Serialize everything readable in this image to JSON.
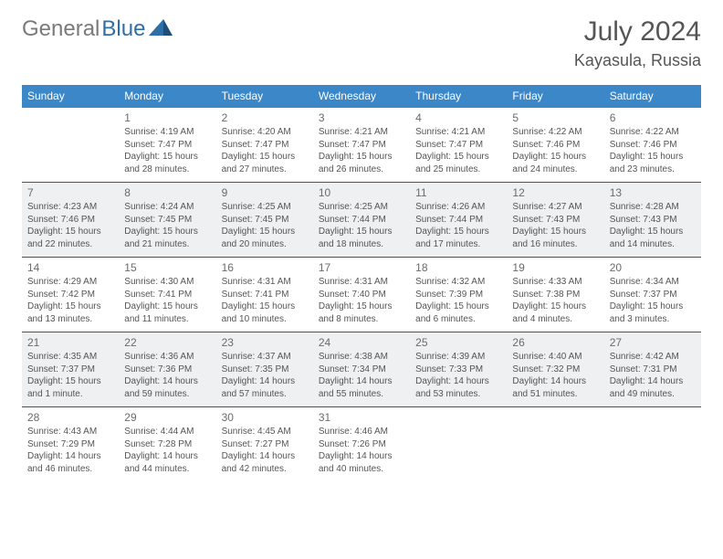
{
  "brand": {
    "part1": "General",
    "part2": "Blue"
  },
  "header": {
    "month_title": "July 2024",
    "location": "Kayasula, Russia"
  },
  "colors": {
    "header_bg": "#3b87c8",
    "header_text": "#ffffff",
    "row_border": "#2a5a86",
    "shaded_bg": "#eef0f1",
    "text": "#555555"
  },
  "day_names": [
    "Sunday",
    "Monday",
    "Tuesday",
    "Wednesday",
    "Thursday",
    "Friday",
    "Saturday"
  ],
  "weeks": [
    {
      "shaded": false,
      "days": [
        {
          "n": "",
          "sr": "",
          "ss": "",
          "dl": ""
        },
        {
          "n": "1",
          "sr": "Sunrise: 4:19 AM",
          "ss": "Sunset: 7:47 PM",
          "dl": "Daylight: 15 hours and 28 minutes."
        },
        {
          "n": "2",
          "sr": "Sunrise: 4:20 AM",
          "ss": "Sunset: 7:47 PM",
          "dl": "Daylight: 15 hours and 27 minutes."
        },
        {
          "n": "3",
          "sr": "Sunrise: 4:21 AM",
          "ss": "Sunset: 7:47 PM",
          "dl": "Daylight: 15 hours and 26 minutes."
        },
        {
          "n": "4",
          "sr": "Sunrise: 4:21 AM",
          "ss": "Sunset: 7:47 PM",
          "dl": "Daylight: 15 hours and 25 minutes."
        },
        {
          "n": "5",
          "sr": "Sunrise: 4:22 AM",
          "ss": "Sunset: 7:46 PM",
          "dl": "Daylight: 15 hours and 24 minutes."
        },
        {
          "n": "6",
          "sr": "Sunrise: 4:22 AM",
          "ss": "Sunset: 7:46 PM",
          "dl": "Daylight: 15 hours and 23 minutes."
        }
      ]
    },
    {
      "shaded": true,
      "days": [
        {
          "n": "7",
          "sr": "Sunrise: 4:23 AM",
          "ss": "Sunset: 7:46 PM",
          "dl": "Daylight: 15 hours and 22 minutes."
        },
        {
          "n": "8",
          "sr": "Sunrise: 4:24 AM",
          "ss": "Sunset: 7:45 PM",
          "dl": "Daylight: 15 hours and 21 minutes."
        },
        {
          "n": "9",
          "sr": "Sunrise: 4:25 AM",
          "ss": "Sunset: 7:45 PM",
          "dl": "Daylight: 15 hours and 20 minutes."
        },
        {
          "n": "10",
          "sr": "Sunrise: 4:25 AM",
          "ss": "Sunset: 7:44 PM",
          "dl": "Daylight: 15 hours and 18 minutes."
        },
        {
          "n": "11",
          "sr": "Sunrise: 4:26 AM",
          "ss": "Sunset: 7:44 PM",
          "dl": "Daylight: 15 hours and 17 minutes."
        },
        {
          "n": "12",
          "sr": "Sunrise: 4:27 AM",
          "ss": "Sunset: 7:43 PM",
          "dl": "Daylight: 15 hours and 16 minutes."
        },
        {
          "n": "13",
          "sr": "Sunrise: 4:28 AM",
          "ss": "Sunset: 7:43 PM",
          "dl": "Daylight: 15 hours and 14 minutes."
        }
      ]
    },
    {
      "shaded": false,
      "days": [
        {
          "n": "14",
          "sr": "Sunrise: 4:29 AM",
          "ss": "Sunset: 7:42 PM",
          "dl": "Daylight: 15 hours and 13 minutes."
        },
        {
          "n": "15",
          "sr": "Sunrise: 4:30 AM",
          "ss": "Sunset: 7:41 PM",
          "dl": "Daylight: 15 hours and 11 minutes."
        },
        {
          "n": "16",
          "sr": "Sunrise: 4:31 AM",
          "ss": "Sunset: 7:41 PM",
          "dl": "Daylight: 15 hours and 10 minutes."
        },
        {
          "n": "17",
          "sr": "Sunrise: 4:31 AM",
          "ss": "Sunset: 7:40 PM",
          "dl": "Daylight: 15 hours and 8 minutes."
        },
        {
          "n": "18",
          "sr": "Sunrise: 4:32 AM",
          "ss": "Sunset: 7:39 PM",
          "dl": "Daylight: 15 hours and 6 minutes."
        },
        {
          "n": "19",
          "sr": "Sunrise: 4:33 AM",
          "ss": "Sunset: 7:38 PM",
          "dl": "Daylight: 15 hours and 4 minutes."
        },
        {
          "n": "20",
          "sr": "Sunrise: 4:34 AM",
          "ss": "Sunset: 7:37 PM",
          "dl": "Daylight: 15 hours and 3 minutes."
        }
      ]
    },
    {
      "shaded": true,
      "days": [
        {
          "n": "21",
          "sr": "Sunrise: 4:35 AM",
          "ss": "Sunset: 7:37 PM",
          "dl": "Daylight: 15 hours and 1 minute."
        },
        {
          "n": "22",
          "sr": "Sunrise: 4:36 AM",
          "ss": "Sunset: 7:36 PM",
          "dl": "Daylight: 14 hours and 59 minutes."
        },
        {
          "n": "23",
          "sr": "Sunrise: 4:37 AM",
          "ss": "Sunset: 7:35 PM",
          "dl": "Daylight: 14 hours and 57 minutes."
        },
        {
          "n": "24",
          "sr": "Sunrise: 4:38 AM",
          "ss": "Sunset: 7:34 PM",
          "dl": "Daylight: 14 hours and 55 minutes."
        },
        {
          "n": "25",
          "sr": "Sunrise: 4:39 AM",
          "ss": "Sunset: 7:33 PM",
          "dl": "Daylight: 14 hours and 53 minutes."
        },
        {
          "n": "26",
          "sr": "Sunrise: 4:40 AM",
          "ss": "Sunset: 7:32 PM",
          "dl": "Daylight: 14 hours and 51 minutes."
        },
        {
          "n": "27",
          "sr": "Sunrise: 4:42 AM",
          "ss": "Sunset: 7:31 PM",
          "dl": "Daylight: 14 hours and 49 minutes."
        }
      ]
    },
    {
      "shaded": false,
      "days": [
        {
          "n": "28",
          "sr": "Sunrise: 4:43 AM",
          "ss": "Sunset: 7:29 PM",
          "dl": "Daylight: 14 hours and 46 minutes."
        },
        {
          "n": "29",
          "sr": "Sunrise: 4:44 AM",
          "ss": "Sunset: 7:28 PM",
          "dl": "Daylight: 14 hours and 44 minutes."
        },
        {
          "n": "30",
          "sr": "Sunrise: 4:45 AM",
          "ss": "Sunset: 7:27 PM",
          "dl": "Daylight: 14 hours and 42 minutes."
        },
        {
          "n": "31",
          "sr": "Sunrise: 4:46 AM",
          "ss": "Sunset: 7:26 PM",
          "dl": "Daylight: 14 hours and 40 minutes."
        },
        {
          "n": "",
          "sr": "",
          "ss": "",
          "dl": ""
        },
        {
          "n": "",
          "sr": "",
          "ss": "",
          "dl": ""
        },
        {
          "n": "",
          "sr": "",
          "ss": "",
          "dl": ""
        }
      ]
    }
  ]
}
